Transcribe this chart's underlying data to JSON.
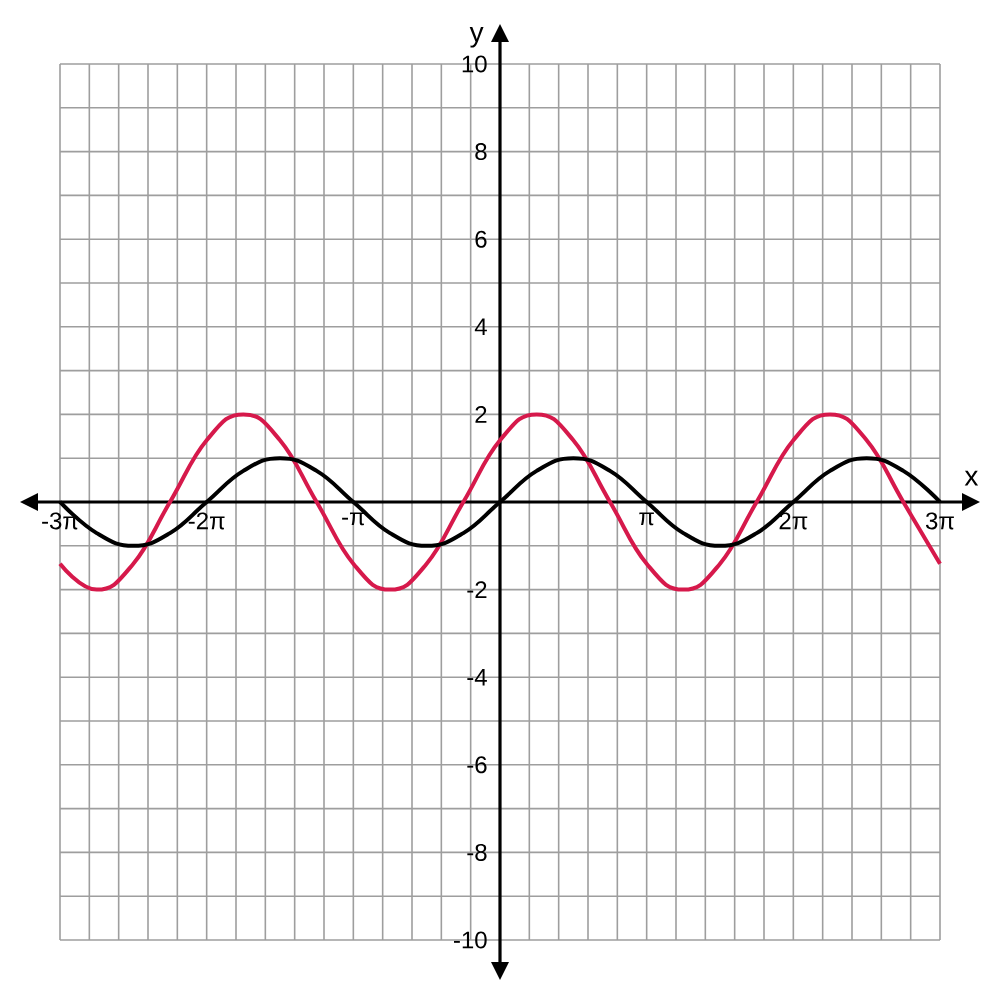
{
  "chart_data": {
    "type": "line",
    "xlabel": "x",
    "ylabel": "y",
    "x": [
      -9.4248,
      -8.6394,
      -7.854,
      -7.0686,
      -6.2832,
      -5.4978,
      -4.7124,
      -3.927,
      -3.1416,
      -2.3562,
      -1.5708,
      -0.7854,
      0,
      0.7854,
      1.5708,
      2.3562,
      3.1416,
      3.927,
      4.7124,
      5.4978,
      6.2832,
      7.0686,
      7.854,
      8.6394,
      9.4248
    ],
    "series": [
      {
        "color": "#d6194b",
        "values": [
          -1.41,
          -2,
          -1.41,
          0,
          1.41,
          2,
          1.41,
          0,
          -1.41,
          -2,
          -1.41,
          0,
          1.41,
          2,
          1.41,
          0,
          -1.41,
          -2,
          -1.41,
          0,
          1.41,
          2,
          1.41,
          0,
          -1.41
        ]
      },
      {
        "color": "#000000",
        "values": [
          0,
          -0.71,
          -1,
          -0.71,
          0,
          0.71,
          1,
          0.71,
          0,
          -0.71,
          -1,
          -0.71,
          0,
          0.71,
          1,
          0.71,
          0,
          -0.71,
          -1,
          -0.71,
          0,
          0.71,
          1,
          0.71,
          0
        ]
      }
    ],
    "xlim": [
      -9.4248,
      9.4248
    ],
    "ylim": [
      -10,
      10
    ],
    "xticks": [
      {
        "value": -9.4248,
        "label": "-3π"
      },
      {
        "value": -8.7965,
        "label": null
      },
      {
        "value": -8.1681,
        "label": null
      },
      {
        "value": -7.5398,
        "label": null
      },
      {
        "value": -6.9115,
        "label": null
      },
      {
        "value": -6.2832,
        "label": "-2π"
      },
      {
        "value": -5.6549,
        "label": null
      },
      {
        "value": -5.0265,
        "label": null
      },
      {
        "value": -4.3982,
        "label": null
      },
      {
        "value": -3.7699,
        "label": null
      },
      {
        "value": -3.1416,
        "label": "-π"
      },
      {
        "value": -2.5133,
        "label": null
      },
      {
        "value": -1.885,
        "label": null
      },
      {
        "value": -1.2566,
        "label": null
      },
      {
        "value": -0.6283,
        "label": null
      },
      {
        "value": 0,
        "label": null
      },
      {
        "value": 0.6283,
        "label": null
      },
      {
        "value": 1.2566,
        "label": null
      },
      {
        "value": 1.885,
        "label": null
      },
      {
        "value": 2.5133,
        "label": null
      },
      {
        "value": 3.1416,
        "label": "π"
      },
      {
        "value": 3.7699,
        "label": null
      },
      {
        "value": 4.3982,
        "label": null
      },
      {
        "value": 5.0265,
        "label": null
      },
      {
        "value": 5.6549,
        "label": null
      },
      {
        "value": 6.2832,
        "label": "2π"
      },
      {
        "value": 6.9115,
        "label": null
      },
      {
        "value": 7.5398,
        "label": null
      },
      {
        "value": 8.1681,
        "label": null
      },
      {
        "value": 8.7965,
        "label": null
      },
      {
        "value": 9.4248,
        "label": "3π"
      }
    ],
    "yticks": [
      -10,
      {
        "value": -9,
        "label": null
      },
      -8,
      {
        "value": -7,
        "label": null
      },
      -6,
      {
        "value": -5,
        "label": null
      },
      -4,
      {
        "value": -3,
        "label": null
      },
      -2,
      {
        "value": -1,
        "label": null
      },
      {
        "value": 0,
        "label": null
      },
      {
        "value": 1,
        "label": null
      },
      2,
      {
        "value": 3,
        "label": null
      },
      4,
      {
        "value": 5,
        "label": null
      },
      6,
      {
        "value": 7,
        "label": null
      },
      8,
      {
        "value": 9,
        "label": null
      },
      10
    ],
    "grid": true,
    "marker": "none",
    "line_style": "solid"
  }
}
